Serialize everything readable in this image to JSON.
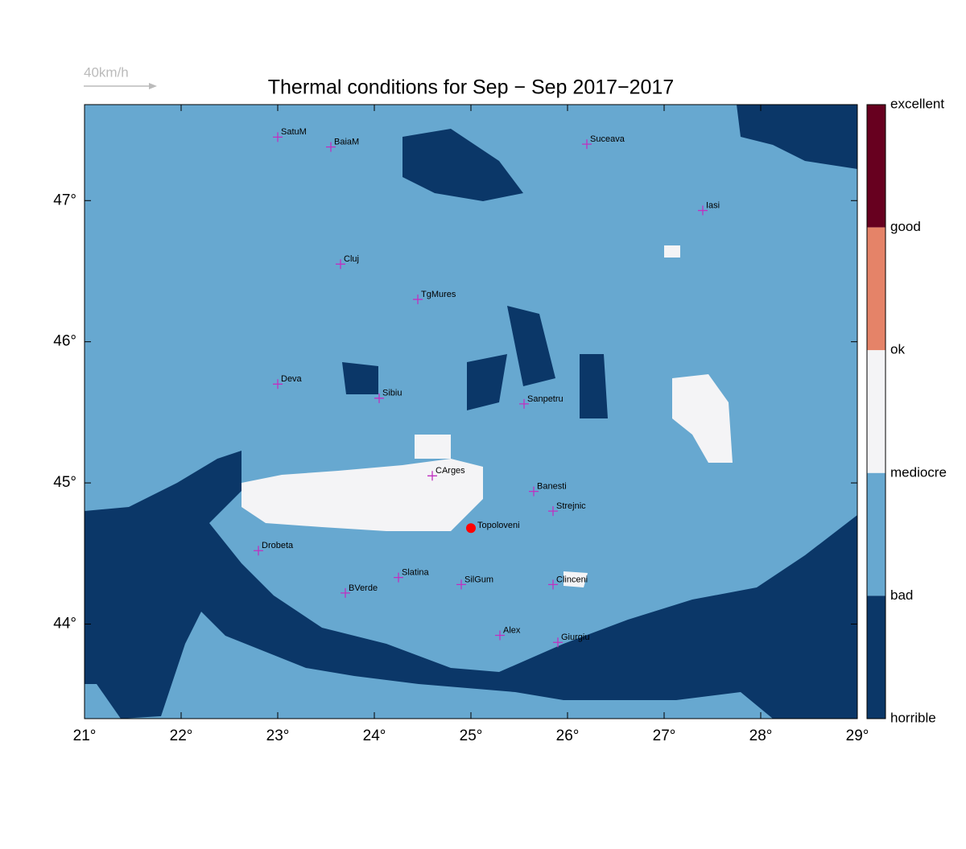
{
  "title": "Thermal conditions for Sep − Sep  2017−2017",
  "wind_scale": "40km/h",
  "map": {
    "xlim": [
      21,
      29
    ],
    "ylim": [
      43.33,
      47.68
    ],
    "xticks": [
      {
        "value": 21,
        "label": "21°"
      },
      {
        "value": 22,
        "label": "22°"
      },
      {
        "value": 23,
        "label": "23°"
      },
      {
        "value": 24,
        "label": "24°"
      },
      {
        "value": 25,
        "label": "25°"
      },
      {
        "value": 26,
        "label": "26°"
      },
      {
        "value": 27,
        "label": "27°"
      },
      {
        "value": 28,
        "label": "28°"
      },
      {
        "value": 29,
        "label": "29°"
      }
    ],
    "yticks": [
      {
        "value": 44,
        "label": "44°"
      },
      {
        "value": 45,
        "label": "45°"
      },
      {
        "value": 46,
        "label": "46°"
      },
      {
        "value": 47,
        "label": "47°"
      }
    ],
    "cities": [
      {
        "name": "SatuM",
        "lon": 23.0,
        "lat": 47.45
      },
      {
        "name": "BaiaM",
        "lon": 23.55,
        "lat": 47.38
      },
      {
        "name": "Suceava",
        "lon": 26.2,
        "lat": 47.4
      },
      {
        "name": "Iasi",
        "lon": 27.4,
        "lat": 46.93
      },
      {
        "name": "Cluj",
        "lon": 23.65,
        "lat": 46.55
      },
      {
        "name": "TgMures",
        "lon": 24.45,
        "lat": 46.3
      },
      {
        "name": "Deva",
        "lon": 23.0,
        "lat": 45.7
      },
      {
        "name": "Sibiu",
        "lon": 24.05,
        "lat": 45.6
      },
      {
        "name": "Sanpetru",
        "lon": 25.55,
        "lat": 45.56
      },
      {
        "name": "CArges",
        "lon": 24.6,
        "lat": 45.05
      },
      {
        "name": "Banesti",
        "lon": 25.65,
        "lat": 44.94
      },
      {
        "name": "Strejnic",
        "lon": 25.85,
        "lat": 44.8
      },
      {
        "name": "Drobeta",
        "lon": 22.8,
        "lat": 44.52
      },
      {
        "name": "Slatina",
        "lon": 24.25,
        "lat": 44.33
      },
      {
        "name": "SilGum",
        "lon": 24.9,
        "lat": 44.28
      },
      {
        "name": "Clinceni",
        "lon": 25.85,
        "lat": 44.28
      },
      {
        "name": "BVerde",
        "lon": 23.7,
        "lat": 44.22
      },
      {
        "name": "Alex",
        "lon": 25.3,
        "lat": 43.92
      },
      {
        "name": "Giurgiu",
        "lon": 25.9,
        "lat": 43.87
      }
    ],
    "site": {
      "name": "Topoloveni",
      "lon": 25.0,
      "lat": 44.68,
      "color": "#ff0000"
    }
  },
  "legend": {
    "labels": [
      "excellent",
      "good",
      "ok",
      "mediocre",
      "bad",
      "horrible"
    ],
    "colors": [
      "#67001f",
      "#e58368",
      "#f4f4f6",
      "#67a8d0",
      "#0b3768"
    ]
  }
}
